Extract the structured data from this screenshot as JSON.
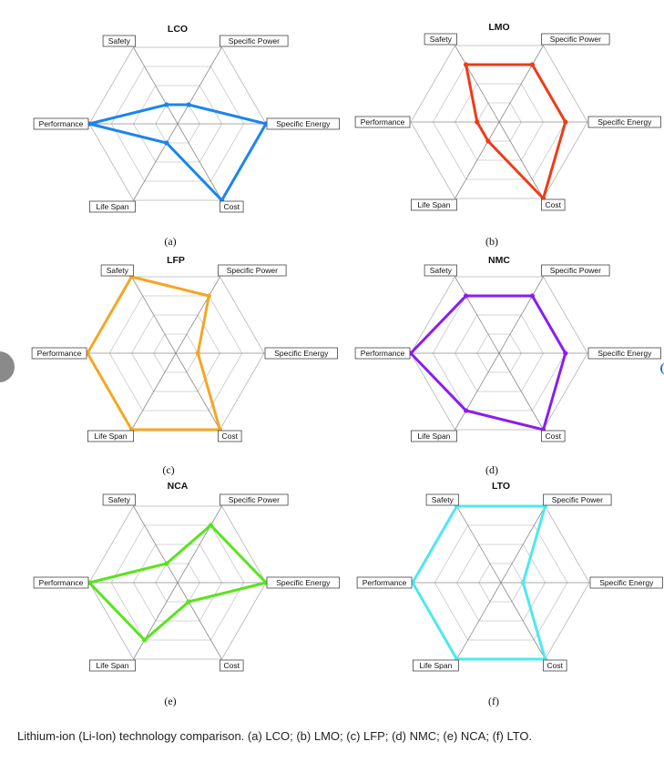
{
  "caption": "Lithium-ion (Li-Ion) technology comparison. (a) LCO; (b) LMO; (c) LFP; (d) NMC; (e) NCA; (f) LTO.",
  "chart_data": [
    {
      "type": "radar",
      "title": "LCO",
      "panel_label": "(a)",
      "axes": [
        "Safety",
        "Specific Power",
        "Specific Energy",
        "Cost",
        "Life Span",
        "Performance"
      ],
      "values": [
        1,
        1,
        4,
        4,
        1,
        4
      ],
      "rmax": 4,
      "color": "#1a85f0"
    },
    {
      "type": "radar",
      "title": "LMO",
      "panel_label": "(b)",
      "axes": [
        "Safety",
        "Specific Power",
        "Specific Energy",
        "Cost",
        "Life Span",
        "Performance"
      ],
      "values": [
        3,
        3,
        3,
        4,
        1,
        1
      ],
      "rmax": 4,
      "color": "#f03a17"
    },
    {
      "type": "radar",
      "title": "LFP",
      "panel_label": "(c)",
      "axes": [
        "Safety",
        "Specific Power",
        "Specific Energy",
        "Cost",
        "Life Span",
        "Performance"
      ],
      "values": [
        4,
        3,
        1,
        4,
        4,
        4
      ],
      "rmax": 4,
      "color": "#f5a623"
    },
    {
      "type": "radar",
      "title": "NMC",
      "panel_label": "(d)",
      "axes": [
        "Safety",
        "Specific Power",
        "Specific Energy",
        "Cost",
        "Life Span",
        "Performance"
      ],
      "values": [
        3,
        3,
        3,
        4,
        3,
        4
      ],
      "rmax": 4,
      "color": "#8a1df0"
    },
    {
      "type": "radar",
      "title": "NCA",
      "panel_label": "(e)",
      "axes": [
        "Safety",
        "Specific Power",
        "Specific Energy",
        "Cost",
        "Life Span",
        "Performance"
      ],
      "values": [
        1,
        3,
        4,
        1,
        3,
        4
      ],
      "rmax": 4,
      "color": "#57e51c"
    },
    {
      "type": "radar",
      "title": "LTO",
      "panel_label": "(f)",
      "axes": [
        "Safety",
        "Specific Power",
        "Specific Energy",
        "Cost",
        "Life Span",
        "Performance"
      ],
      "values": [
        4,
        4,
        1,
        4,
        4,
        4
      ],
      "rmax": 4,
      "color": "#4de8f0"
    }
  ]
}
